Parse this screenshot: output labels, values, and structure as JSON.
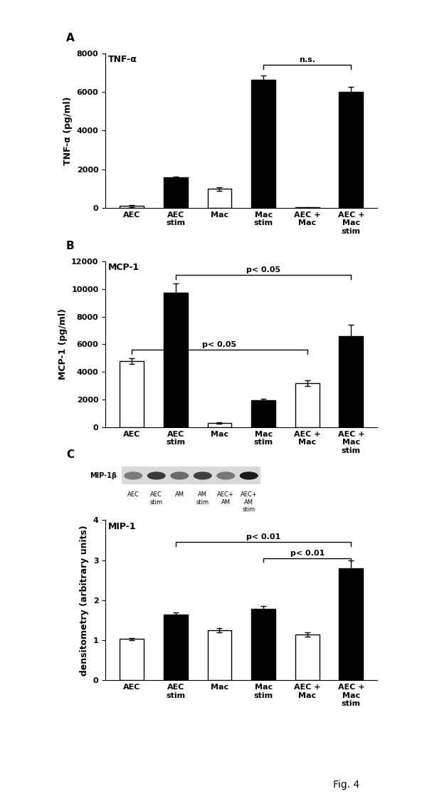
{
  "chart_data": [
    {
      "type": "bar",
      "panel": "A",
      "title": "TNF-α",
      "y_label": "TNF-α (pg/ml)",
      "categories": [
        "AEC",
        "AEC\nstim",
        "Mac",
        "Mac\nstim",
        "AEC +\nMac",
        "AEC +\nMac\nstim"
      ],
      "values": [
        100,
        1580,
        980,
        6650,
        20,
        6000
      ],
      "errors": [
        50,
        40,
        80,
        200,
        10,
        250
      ],
      "colors": [
        "#ffffff",
        "#000000",
        "#ffffff",
        "#000000",
        "#ffffff",
        "#000000"
      ],
      "ylim": [
        0,
        8000
      ],
      "yticks": [
        0,
        2000,
        4000,
        6000,
        8000
      ],
      "annotations": [
        {
          "text": "n.s.",
          "from": 3,
          "to": 5,
          "y": 7400
        }
      ]
    },
    {
      "type": "bar",
      "panel": "B",
      "title": "MCP-1",
      "y_label": "MCP-1 (pg/ml)",
      "categories": [
        "AEC",
        "AEC\nstim",
        "Mac",
        "Mac\nstim",
        "AEC +\nMac",
        "AEC +\nMac\nstim"
      ],
      "values": [
        4800,
        9750,
        300,
        1950,
        3200,
        6600
      ],
      "errors": [
        200,
        650,
        50,
        100,
        200,
        800
      ],
      "colors": [
        "#ffffff",
        "#000000",
        "#ffffff",
        "#000000",
        "#ffffff",
        "#000000"
      ],
      "ylim": [
        0,
        12000
      ],
      "yticks": [
        0,
        2000,
        4000,
        6000,
        8000,
        10000,
        12000
      ],
      "annotations": [
        {
          "text": "p< 0.05",
          "from": 1,
          "to": 5,
          "y": 11000
        },
        {
          "text": "p< 0.05",
          "from": 0,
          "to": 4,
          "y": 5600
        }
      ]
    },
    {
      "type": "bar",
      "panel": "C",
      "title": "MIP-1",
      "y_label": "densitometry (arbitrary units)",
      "categories": [
        "AEC",
        "AEC\nstim",
        "Mac",
        "Mac\nstim",
        "AEC +\nMac",
        "AEC +\nMac\nstim"
      ],
      "values": [
        1.03,
        1.65,
        1.25,
        1.78,
        1.15,
        2.8
      ],
      "errors": [
        0.03,
        0.05,
        0.05,
        0.07,
        0.05,
        0.2
      ],
      "colors": [
        "#ffffff",
        "#000000",
        "#ffffff",
        "#000000",
        "#ffffff",
        "#000000"
      ],
      "ylim": [
        0,
        4
      ],
      "yticks": [
        0,
        1,
        2,
        3,
        4
      ],
      "annotations": [
        {
          "text": "p< 0.01",
          "from": 1,
          "to": 5,
          "y": 3.45
        },
        {
          "text": "p< 0.01",
          "from": 3,
          "to": 5,
          "y": 3.05
        }
      ]
    }
  ],
  "blot": {
    "label": "MIP-1β",
    "lanes": [
      "AEC",
      "AEC\nstim",
      "AM",
      "AM\nstim",
      "AEC+\nAM",
      "AEC+\nAM\nstim"
    ]
  },
  "figure_label": "Fig. 4"
}
